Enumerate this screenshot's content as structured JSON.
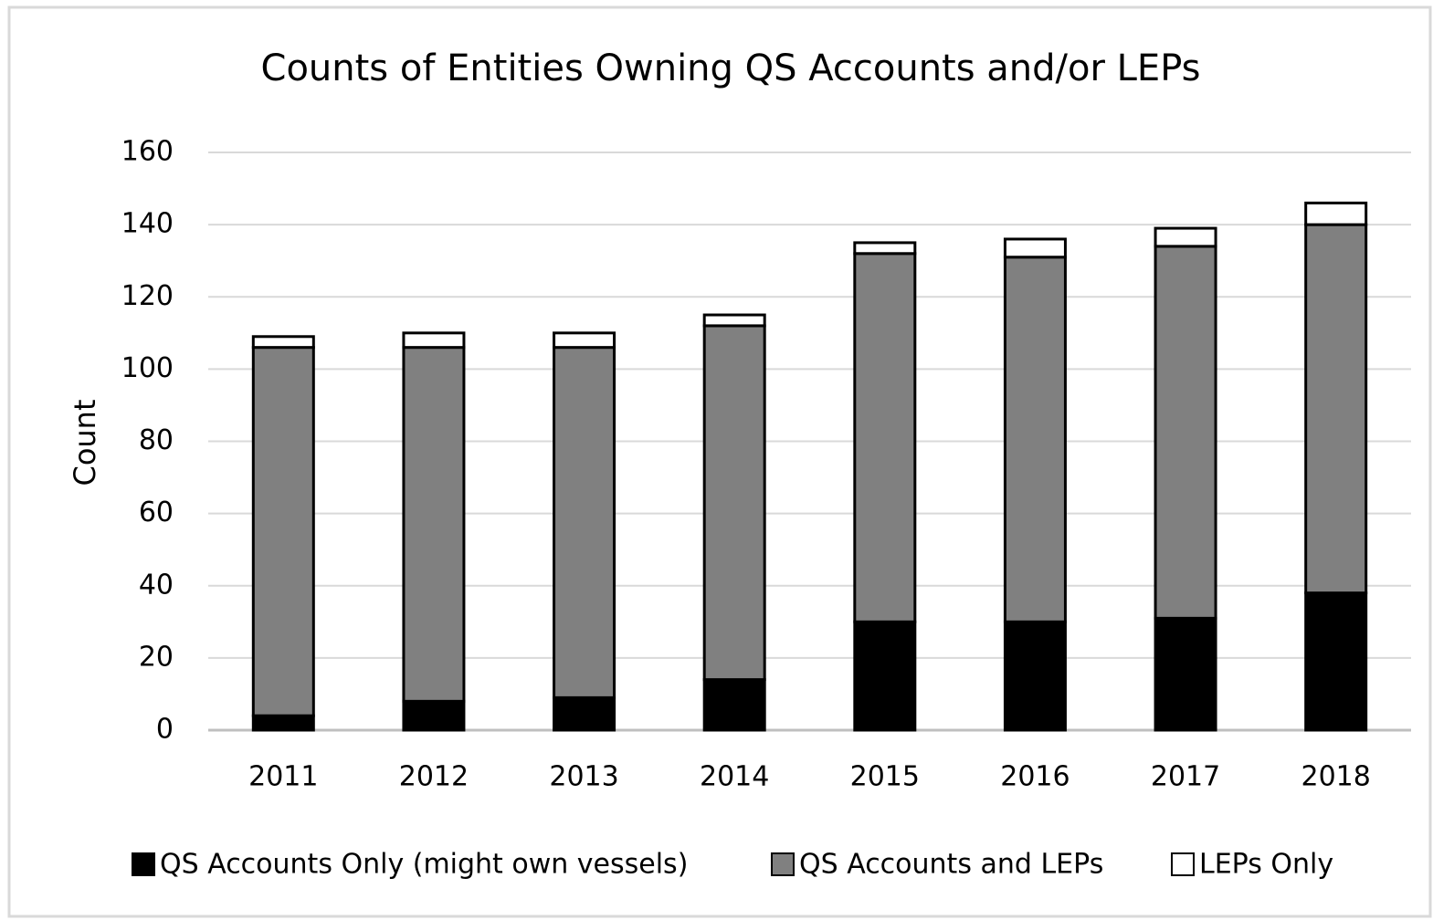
{
  "chart_data": {
    "type": "stacked_bar",
    "title": "Counts of Entities Owning QS Accounts and/or LEPs",
    "y_label": "Count",
    "categories": [
      "2011",
      "2012",
      "2013",
      "2014",
      "2015",
      "2016",
      "2017",
      "2018"
    ],
    "series": [
      {
        "name": "QS Accounts Only (might own vessels)",
        "color": "#000000",
        "values": [
          4,
          8,
          9,
          14,
          30,
          30,
          31,
          38
        ]
      },
      {
        "name": "QS Accounts and LEPs",
        "color": "#808080",
        "values": [
          102,
          98,
          97,
          98,
          102,
          101,
          103,
          102
        ]
      },
      {
        "name": "LEPs Only",
        "color": "#ffffff",
        "values": [
          3,
          4,
          4,
          3,
          3,
          5,
          5,
          6
        ]
      }
    ],
    "ylim": [
      0,
      160
    ],
    "yticks": [
      0,
      20,
      40,
      60,
      80,
      100,
      120,
      140,
      160
    ],
    "grid": true,
    "legend": "bottom"
  }
}
